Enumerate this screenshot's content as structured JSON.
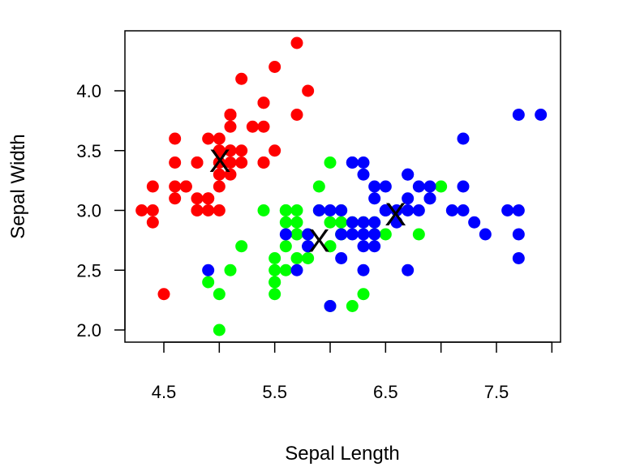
{
  "chart_data": {
    "type": "scatter",
    "title": "",
    "xlabel": "Sepal Length",
    "ylabel": "Sepal Width",
    "xlim": [
      4.3,
      7.9
    ],
    "ylim": [
      2.0,
      4.4
    ],
    "x_ticks": [
      "4.5",
      "5.5",
      "6.5",
      "7.5"
    ],
    "y_ticks": [
      "2.0",
      "2.5",
      "3.0",
      "3.5",
      "4.0"
    ],
    "grid": false,
    "series": [
      {
        "color": "#ff0000",
        "points": [
          [
            5.1,
            3.5
          ],
          [
            4.9,
            3.0
          ],
          [
            4.7,
            3.2
          ],
          [
            4.6,
            3.1
          ],
          [
            5.0,
            3.6
          ],
          [
            5.4,
            3.9
          ],
          [
            4.6,
            3.4
          ],
          [
            5.0,
            3.4
          ],
          [
            4.4,
            2.9
          ],
          [
            4.9,
            3.1
          ],
          [
            5.4,
            3.7
          ],
          [
            4.8,
            3.4
          ],
          [
            4.8,
            3.0
          ],
          [
            4.3,
            3.0
          ],
          [
            5.8,
            4.0
          ],
          [
            5.7,
            4.4
          ],
          [
            5.4,
            3.9
          ],
          [
            5.1,
            3.5
          ],
          [
            5.7,
            3.8
          ],
          [
            5.1,
            3.8
          ],
          [
            5.4,
            3.4
          ],
          [
            5.1,
            3.7
          ],
          [
            4.6,
            3.6
          ],
          [
            5.1,
            3.3
          ],
          [
            4.8,
            3.4
          ],
          [
            5.0,
            3.0
          ],
          [
            5.0,
            3.4
          ],
          [
            5.2,
            3.5
          ],
          [
            5.2,
            3.4
          ],
          [
            4.7,
            3.2
          ],
          [
            4.8,
            3.1
          ],
          [
            5.4,
            3.4
          ],
          [
            5.2,
            4.1
          ],
          [
            5.5,
            4.2
          ],
          [
            4.9,
            3.1
          ],
          [
            5.0,
            3.2
          ],
          [
            5.5,
            3.5
          ],
          [
            4.9,
            3.6
          ],
          [
            4.4,
            3.0
          ],
          [
            5.1,
            3.4
          ],
          [
            5.0,
            3.5
          ],
          [
            4.5,
            2.3
          ],
          [
            4.4,
            3.2
          ],
          [
            5.0,
            3.5
          ],
          [
            5.1,
            3.8
          ],
          [
            4.8,
            3.0
          ],
          [
            5.1,
            3.8
          ],
          [
            4.6,
            3.2
          ],
          [
            5.3,
            3.7
          ],
          [
            5.0,
            3.3
          ]
        ]
      },
      {
        "color": "#00ff00",
        "points": [
          [
            5.5,
            2.3
          ],
          [
            5.7,
            2.8
          ],
          [
            4.9,
            2.4
          ],
          [
            5.2,
            2.7
          ],
          [
            5.0,
            2.0
          ],
          [
            5.9,
            3.0
          ],
          [
            6.0,
            2.2
          ],
          [
            5.6,
            2.9
          ],
          [
            5.6,
            3.0
          ],
          [
            5.8,
            2.7
          ],
          [
            6.2,
            2.2
          ],
          [
            5.6,
            2.5
          ],
          [
            5.9,
            3.2
          ],
          [
            6.1,
            2.8
          ],
          [
            6.0,
            2.9
          ],
          [
            5.7,
            2.6
          ],
          [
            5.5,
            2.4
          ],
          [
            5.5,
            2.4
          ],
          [
            5.8,
            2.7
          ],
          [
            6.0,
            2.7
          ],
          [
            5.4,
            3.0
          ],
          [
            6.0,
            3.4
          ],
          [
            6.3,
            2.3
          ],
          [
            5.6,
            3.0
          ],
          [
            5.5,
            2.5
          ],
          [
            5.5,
            2.6
          ],
          [
            6.1,
            3.0
          ],
          [
            5.8,
            2.6
          ],
          [
            5.0,
            2.3
          ],
          [
            5.6,
            2.7
          ],
          [
            5.7,
            3.0
          ],
          [
            5.7,
            2.9
          ],
          [
            6.2,
            2.9
          ],
          [
            5.1,
            2.5
          ],
          [
            5.7,
            2.8
          ],
          [
            5.8,
            2.8
          ],
          [
            6.1,
            2.8
          ],
          [
            6.4,
            2.9
          ],
          [
            6.1,
            2.9
          ],
          [
            6.5,
            2.8
          ],
          [
            6.8,
            2.8
          ],
          [
            7.0,
            3.2
          ],
          [
            6.4,
            2.8
          ],
          [
            6.0,
            2.7
          ],
          [
            6.3,
            2.9
          ]
        ]
      },
      {
        "color": "#0000ff",
        "points": [
          [
            6.3,
            3.3
          ],
          [
            5.8,
            2.7
          ],
          [
            7.1,
            3.0
          ],
          [
            6.3,
            2.9
          ],
          [
            6.5,
            3.0
          ],
          [
            7.6,
            3.0
          ],
          [
            4.9,
            2.5
          ],
          [
            7.3,
            2.9
          ],
          [
            6.7,
            2.5
          ],
          [
            7.2,
            3.6
          ],
          [
            6.5,
            3.2
          ],
          [
            6.4,
            2.7
          ],
          [
            6.8,
            3.0
          ],
          [
            5.7,
            2.5
          ],
          [
            5.8,
            2.8
          ],
          [
            6.4,
            3.2
          ],
          [
            6.5,
            3.0
          ],
          [
            7.7,
            3.8
          ],
          [
            7.7,
            2.6
          ],
          [
            6.0,
            2.2
          ],
          [
            6.9,
            3.2
          ],
          [
            5.6,
            2.8
          ],
          [
            7.7,
            2.8
          ],
          [
            6.3,
            2.7
          ],
          [
            6.7,
            3.3
          ],
          [
            7.2,
            3.2
          ],
          [
            6.2,
            2.8
          ],
          [
            6.1,
            3.0
          ],
          [
            6.4,
            2.8
          ],
          [
            7.2,
            3.0
          ],
          [
            7.4,
            2.8
          ],
          [
            7.9,
            3.8
          ],
          [
            6.3,
            2.8
          ],
          [
            6.1,
            2.6
          ],
          [
            7.7,
            3.0
          ],
          [
            6.3,
            3.4
          ],
          [
            6.4,
            3.1
          ],
          [
            6.0,
            3.0
          ],
          [
            6.9,
            3.1
          ],
          [
            6.7,
            3.1
          ],
          [
            6.9,
            3.1
          ],
          [
            5.8,
            2.7
          ],
          [
            6.8,
            3.2
          ],
          [
            6.7,
            3.3
          ],
          [
            6.7,
            3.0
          ],
          [
            6.3,
            2.5
          ],
          [
            6.5,
            3.0
          ],
          [
            6.2,
            3.4
          ],
          [
            5.9,
            3.0
          ],
          [
            6.6,
            3.0
          ],
          [
            6.4,
            2.9
          ],
          [
            6.6,
            2.9
          ],
          [
            6.2,
            2.9
          ],
          [
            6.1,
            2.8
          ],
          [
            6.2,
            3.4
          ]
        ]
      }
    ],
    "centroids": [
      {
        "x": 5.006,
        "y": 3.418,
        "label": "X"
      },
      {
        "x": 5.9,
        "y": 2.75,
        "label": "X"
      },
      {
        "x": 6.59,
        "y": 2.97,
        "label": "X"
      }
    ]
  }
}
